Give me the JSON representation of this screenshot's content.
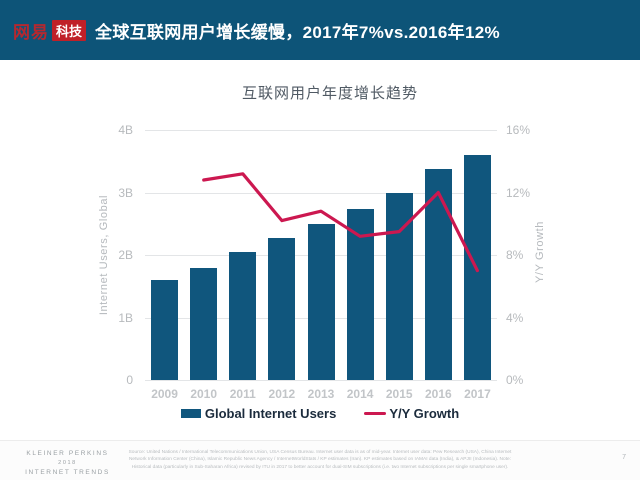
{
  "header": {
    "logo": {
      "brand": "网易",
      "badge": "科技"
    },
    "title": "全球互联网用户增长缓慢，2017年7%vs.2016年12%"
  },
  "chart": {
    "title": "互联网用户年度增长趋势",
    "left_axis_label": "Internet Users, Global",
    "right_axis_label": "Y/Y Growth",
    "left_ticks": [
      "4B",
      "3B",
      "2B",
      "1B",
      "0"
    ],
    "right_ticks": [
      "16%",
      "12%",
      "8%",
      "4%",
      "0%"
    ],
    "legend": [
      {
        "label": "Global Internet Users",
        "type": "bar"
      },
      {
        "label": "Y/Y Growth",
        "type": "line"
      }
    ]
  },
  "chart_data": {
    "type": "bar+line",
    "title": "互联网用户年度增长趋势",
    "categories": [
      "2009",
      "2010",
      "2011",
      "2012",
      "2013",
      "2014",
      "2015",
      "2016",
      "2017"
    ],
    "series": [
      {
        "name": "Global Internet Users",
        "type": "bar",
        "axis": "left",
        "values": [
          1.6,
          1.8,
          2.05,
          2.27,
          2.5,
          2.73,
          3.0,
          3.37,
          3.6
        ]
      },
      {
        "name": "Y/Y Growth",
        "type": "line",
        "axis": "right",
        "values": [
          null,
          12.8,
          13.2,
          10.2,
          10.8,
          9.2,
          9.5,
          12.0,
          7.0
        ]
      }
    ],
    "left_axis": {
      "label": "Internet Users, Global",
      "range": [
        0,
        4
      ],
      "unit": "B",
      "ticks": [
        0,
        1,
        2,
        3,
        4
      ]
    },
    "right_axis": {
      "label": "Y/Y Growth",
      "range": [
        0,
        16
      ],
      "unit": "%",
      "ticks": [
        0,
        4,
        8,
        12,
        16
      ]
    },
    "grid": true,
    "legend_position": "bottom"
  },
  "footer": {
    "brand_lines": [
      "KLEINER PERKINS",
      "2018",
      "INTERNET TRENDS"
    ],
    "source": "Source: United Nations / International Telecommunications Union, USA Census Bureau. Internet user data is as of mid-year. Internet user data: Pew Research (USA), China Internet Network Information Center (China), Islamic Republic News Agency / InternetWorldStats / KP estimates (Iran). KP estimates based on IAMAI data (India), & APJII (Indonesia). Note: Historical data (particularly in Sub-Saharan Africa) revised by ITU in 2017 to better account for dual-SIM subscriptions (i.e. two Internet subscriptions per single smartphone user).",
    "page_number": "7"
  },
  "colors": {
    "header_bg": "#0d5478",
    "bar": "#10567d",
    "line": "#cc1850",
    "logo_red": "#b5282f",
    "badge_bg": "#c02028",
    "grid": "#e3e5e7",
    "tick_text": "#b7babd",
    "legend_text": "#1b2b3c",
    "chart_title_text": "#505a64"
  }
}
